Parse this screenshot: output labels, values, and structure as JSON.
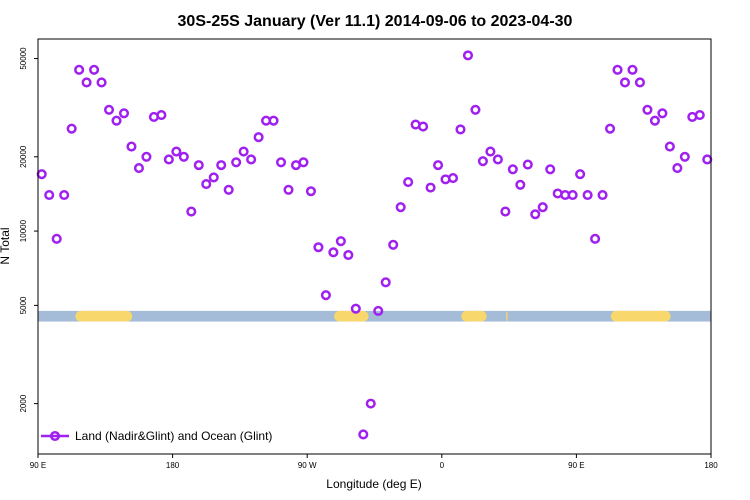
{
  "chart_data": {
    "type": "scatter",
    "title": "30S-25S January (Ver 11.1)   2014-09-06 to 2023-04-30",
    "xlabel": "Longitude (deg E)",
    "ylabel": "N Total",
    "y_scale": "log",
    "xlim": [
      90,
      540
    ],
    "ylim": [
      1250,
      60000
    ],
    "x_ticks": [
      {
        "value": 90,
        "label": "90 E"
      },
      {
        "value": 180,
        "label": "180"
      },
      {
        "value": 270,
        "label": "90 W"
      },
      {
        "value": 360,
        "label": "0"
      },
      {
        "value": 450,
        "label": "90 E"
      },
      {
        "value": 540,
        "label": "180"
      }
    ],
    "y_ticks": [
      {
        "value": 2000,
        "label": "2000"
      },
      {
        "value": 5000,
        "label": "5000"
      },
      {
        "value": 10000,
        "label": "10000"
      },
      {
        "value": 20000,
        "label": "20000"
      },
      {
        "value": 50000,
        "label": "50000"
      }
    ],
    "land_band": {
      "y_range": [
        4300,
        4750
      ],
      "ocean_color": "#a4bcd8",
      "land_color": "#f8d76c",
      "land_segments": [
        [
          115,
          153
        ],
        [
          288,
          311
        ],
        [
          373,
          390
        ],
        [
          403,
          404
        ],
        [
          473,
          513
        ]
      ]
    },
    "series": [
      {
        "name": "Land (Nadir&Glint) and Ocean (Glint)",
        "color": "#a020f0",
        "points": [
          [
            92.5,
            17000
          ],
          [
            97.5,
            14000
          ],
          [
            102.5,
            9300
          ],
          [
            107.5,
            14000
          ],
          [
            112.5,
            26000
          ],
          [
            117.5,
            45000
          ],
          [
            122.5,
            40000
          ],
          [
            127.5,
            45000
          ],
          [
            132.5,
            40000
          ],
          [
            137.5,
            31000
          ],
          [
            142.5,
            28000
          ],
          [
            147.5,
            30000
          ],
          [
            152.5,
            22000
          ],
          [
            157.5,
            18000
          ],
          [
            162.5,
            20000
          ],
          [
            167.5,
            29000
          ],
          [
            172.5,
            29500
          ],
          [
            177.5,
            19500
          ],
          [
            182.5,
            21000
          ],
          [
            187.5,
            20000
          ],
          [
            192.5,
            12000
          ],
          [
            197.5,
            18500
          ],
          [
            202.5,
            15500
          ],
          [
            207.5,
            16500
          ],
          [
            212.5,
            18500
          ],
          [
            217.5,
            14700
          ],
          [
            222.5,
            19000
          ],
          [
            227.5,
            21000
          ],
          [
            232.5,
            19500
          ],
          [
            237.5,
            24000
          ],
          [
            242.5,
            28000
          ],
          [
            247.5,
            28000
          ],
          [
            252.5,
            19000
          ],
          [
            257.5,
            14700
          ],
          [
            262.5,
            18500
          ],
          [
            267.5,
            19000
          ],
          [
            272.5,
            14500
          ],
          [
            277.5,
            8600
          ],
          [
            282.5,
            5500
          ],
          [
            287.5,
            8200
          ],
          [
            292.5,
            9100
          ],
          [
            297.5,
            8000
          ],
          [
            302.5,
            4850
          ],
          [
            307.5,
            1500
          ],
          [
            312.5,
            2000
          ],
          [
            317.5,
            4750
          ],
          [
            322.5,
            6200
          ],
          [
            327.5,
            8800
          ],
          [
            332.5,
            12500
          ],
          [
            337.5,
            15800
          ],
          [
            342.5,
            27000
          ],
          [
            347.5,
            26500
          ],
          [
            352.5,
            15000
          ],
          [
            357.5,
            18500
          ],
          [
            362.5,
            16200
          ],
          [
            367.5,
            16400
          ],
          [
            372.5,
            25800
          ],
          [
            377.5,
            51500
          ],
          [
            382.5,
            31000
          ],
          [
            387.5,
            19200
          ],
          [
            392.5,
            21000
          ],
          [
            397.5,
            19500
          ],
          [
            402.5,
            12000
          ],
          [
            407.5,
            17800
          ],
          [
            412.5,
            15400
          ],
          [
            417.5,
            18600
          ],
          [
            422.5,
            11700
          ],
          [
            427.5,
            12500
          ],
          [
            432.5,
            17800
          ],
          [
            437.5,
            14200
          ],
          [
            442.5,
            14000
          ],
          [
            447.5,
            14000
          ],
          [
            452.5,
            17000
          ],
          [
            457.5,
            14000
          ],
          [
            462.5,
            9300
          ],
          [
            467.5,
            14000
          ],
          [
            472.5,
            26000
          ],
          [
            477.5,
            45000
          ],
          [
            482.5,
            40000
          ],
          [
            487.5,
            45000
          ],
          [
            492.5,
            40000
          ],
          [
            497.5,
            31000
          ],
          [
            502.5,
            28000
          ],
          [
            507.5,
            30000
          ],
          [
            512.5,
            22000
          ],
          [
            517.5,
            18000
          ],
          [
            522.5,
            20000
          ],
          [
            527.5,
            29000
          ],
          [
            532.5,
            29500
          ],
          [
            537.5,
            19500
          ]
        ]
      }
    ],
    "legend": {
      "position": "bottom-left",
      "label": "Land (Nadir&Glint) and Ocean (Glint)"
    }
  }
}
